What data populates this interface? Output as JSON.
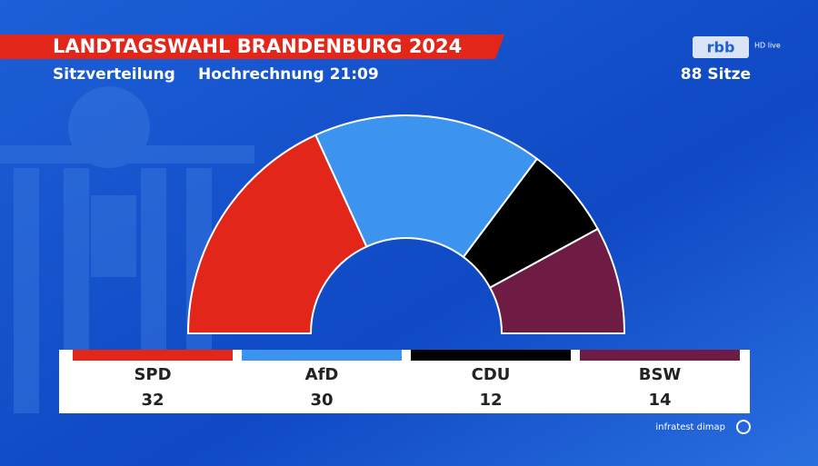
{
  "chart_data": {
    "type": "half-donut",
    "title": "LANDTAGSWAHL BRANDENBURG 2024",
    "subtitle": "Sitzverteilung",
    "status": "Hochrechnung 21:09",
    "total_label": "88 Sitze",
    "broadcaster": "rbb",
    "broadcaster_tag": "HD live",
    "source": "infratest dimap",
    "categories": [
      "SPD",
      "AfD",
      "CDU",
      "BSW"
    ],
    "values": [
      32,
      30,
      12,
      14
    ],
    "colors": [
      "#e2271a",
      "#3d94ee",
      "#000000",
      "#6e1c44"
    ]
  }
}
